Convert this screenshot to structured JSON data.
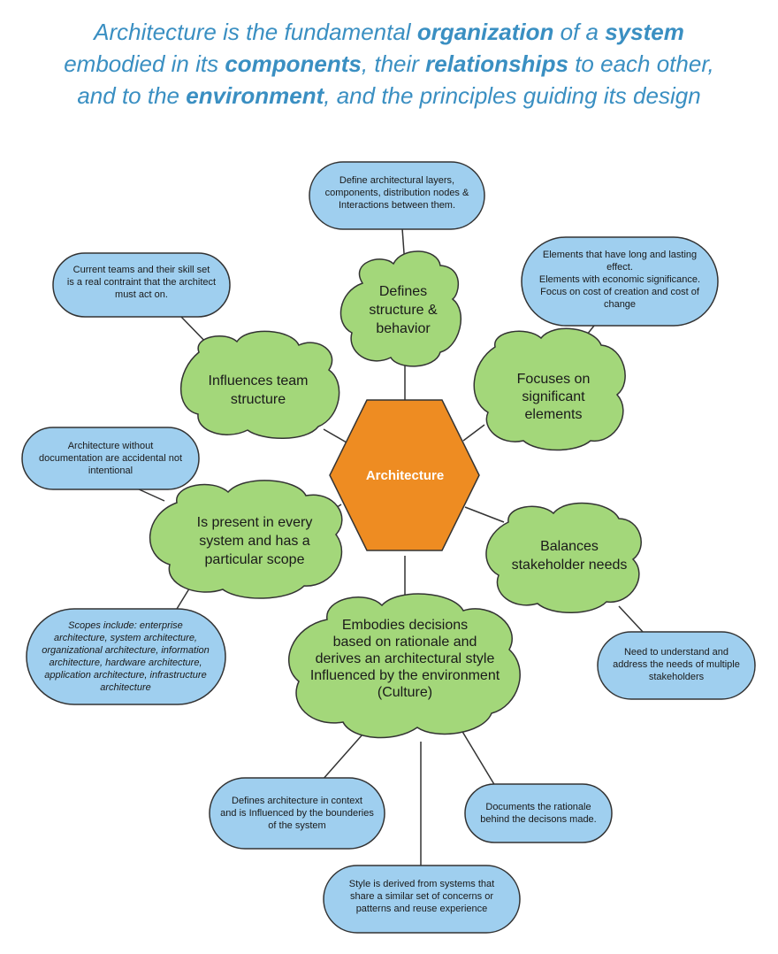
{
  "headline": {
    "l1_a": "Architecture is the fundamental ",
    "l1_b": "organization",
    "l1_c": " of a ",
    "l1_d": "system",
    "l2_a": "embodied in its ",
    "l2_b": "components",
    "l2_c": ", their ",
    "l2_d": "relationships",
    "l2_e": " to each other,",
    "l3_a": "and to the ",
    "l3_b": "environment",
    "l3_c": ", and the principles guiding its design"
  },
  "colors": {
    "headline": "#3a8fc2",
    "hexagon": "#ee8c22",
    "cloud": "#a3d77a",
    "note": "#9fcfef",
    "stroke": "#333333"
  },
  "center": {
    "label": "Architecture"
  },
  "clouds": {
    "structure": [
      "Defines",
      "structure &",
      "behavior"
    ],
    "team": [
      "Influences team",
      "structure"
    ],
    "significant": [
      "Focuses on",
      "significant",
      "elements"
    ],
    "present": [
      "Is present in every",
      "system and has a",
      "particular scope"
    ],
    "stakeholder": [
      "Balances",
      "stakeholder needs"
    ],
    "decisions": [
      "Embodies decisions",
      "based on rationale and",
      "derives an architectural style",
      "Influenced by the environment",
      "(Culture)"
    ]
  },
  "notes": {
    "layers": [
      "Define architectural layers,",
      "components, distribution nodes &",
      "Interactions between them."
    ],
    "teams": [
      "Current teams and their skill set",
      "is a real contraint that the architect",
      "must act on."
    ],
    "elements": [
      "Elements that have long and lasting",
      "effect.",
      "Elements with economic significance.",
      "Focus on cost of creation and cost of",
      "change"
    ],
    "documentation": [
      "Architecture without",
      "documentation are accidental not",
      "intentional"
    ],
    "scopes": [
      "Scopes include: enterprise",
      "architecture, system architecture,",
      "organizational architecture, information",
      "architecture, hardware architecture,",
      "application architecture, infrastructure",
      "architecture"
    ],
    "stakeholders": [
      "Need to understand and",
      "address the needs of multiple",
      "stakeholders"
    ],
    "context": [
      "Defines architecture in context",
      "and is Influenced by the bounderies",
      "of the system"
    ],
    "rationale": [
      "Documents the rationale",
      "behind the decisons made."
    ],
    "style": [
      "Style is derived from systems that",
      "share a similar set of concerns or",
      "patterns and reuse experience"
    ]
  }
}
